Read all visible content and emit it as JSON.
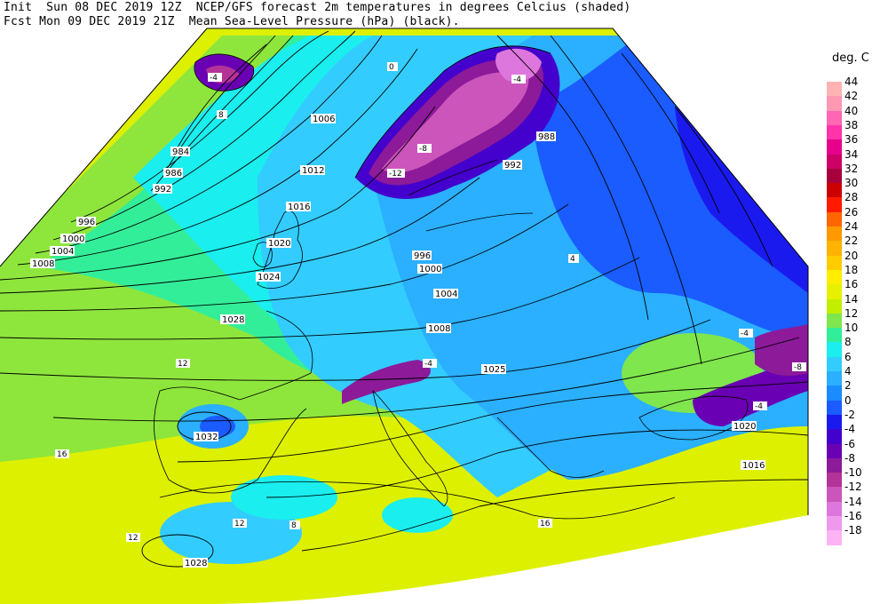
{
  "header": {
    "line1": "Init  Sun 08 DEC 2019 12Z  NCEP/GFS forecast 2m temperatures in degrees Celcius (shaded)",
    "line2": "Fcst Mon 09 DEC 2019 21Z  Mean Sea-Level Pressure (hPa) (black)."
  },
  "legend": {
    "title": "deg. C",
    "entries": [
      {
        "label": "44",
        "color": "#ffb3b3"
      },
      {
        "label": "42",
        "color": "#ff99b3"
      },
      {
        "label": "40",
        "color": "#ff66b3"
      },
      {
        "label": "38",
        "color": "#ff33aa"
      },
      {
        "label": "36",
        "color": "#e6008c"
      },
      {
        "label": "34",
        "color": "#cc0066"
      },
      {
        "label": "32",
        "color": "#a6003c"
      },
      {
        "label": "30",
        "color": "#cc0000"
      },
      {
        "label": "28",
        "color": "#ff1a00"
      },
      {
        "label": "26",
        "color": "#ff6600"
      },
      {
        "label": "24",
        "color": "#ff9900"
      },
      {
        "label": "22",
        "color": "#ffb300"
      },
      {
        "label": "20",
        "color": "#ffcc00"
      },
      {
        "label": "18",
        "color": "#ffee00"
      },
      {
        "label": "16",
        "color": "#e6f000"
      },
      {
        "label": "14",
        "color": "#c2ee00"
      },
      {
        "label": "12",
        "color": "#7fe64d"
      },
      {
        "label": "10",
        "color": "#33ee99"
      },
      {
        "label": "8",
        "color": "#1aeeee"
      },
      {
        "label": "6",
        "color": "#33ccff"
      },
      {
        "label": "4",
        "color": "#2ab0ff"
      },
      {
        "label": "2",
        "color": "#1a8cff"
      },
      {
        "label": "0",
        "color": "#1a5cff"
      },
      {
        "label": "-2",
        "color": "#1a1aee"
      },
      {
        "label": "-4",
        "color": "#4400cc"
      },
      {
        "label": "-6",
        "color": "#6a00b3"
      },
      {
        "label": "-8",
        "color": "#8c1a99"
      },
      {
        "label": "-10",
        "color": "#b33399"
      },
      {
        "label": "-12",
        "color": "#cc55bb"
      },
      {
        "label": "-14",
        "color": "#dd77dd"
      },
      {
        "label": "-16",
        "color": "#ee99ee"
      },
      {
        "label": "-18",
        "color": "#ffb3f5"
      }
    ]
  },
  "isobar_labels": [
    "984",
    "986",
    "992",
    "996",
    "1000",
    "1004",
    "1008",
    "1006",
    "1012",
    "1016",
    "1020",
    "1024",
    "1028",
    "1032",
    "1028",
    "1004",
    "1008",
    "1025",
    "996",
    "1000",
    "988",
    "992",
    "1020",
    "1016"
  ],
  "temp_labels": [
    "-4",
    "-12",
    "-8",
    "-4",
    "-4",
    "-8",
    "-4",
    "-4",
    "0",
    "4",
    "8",
    "12",
    "16",
    "12",
    "8",
    "12",
    "16"
  ]
}
